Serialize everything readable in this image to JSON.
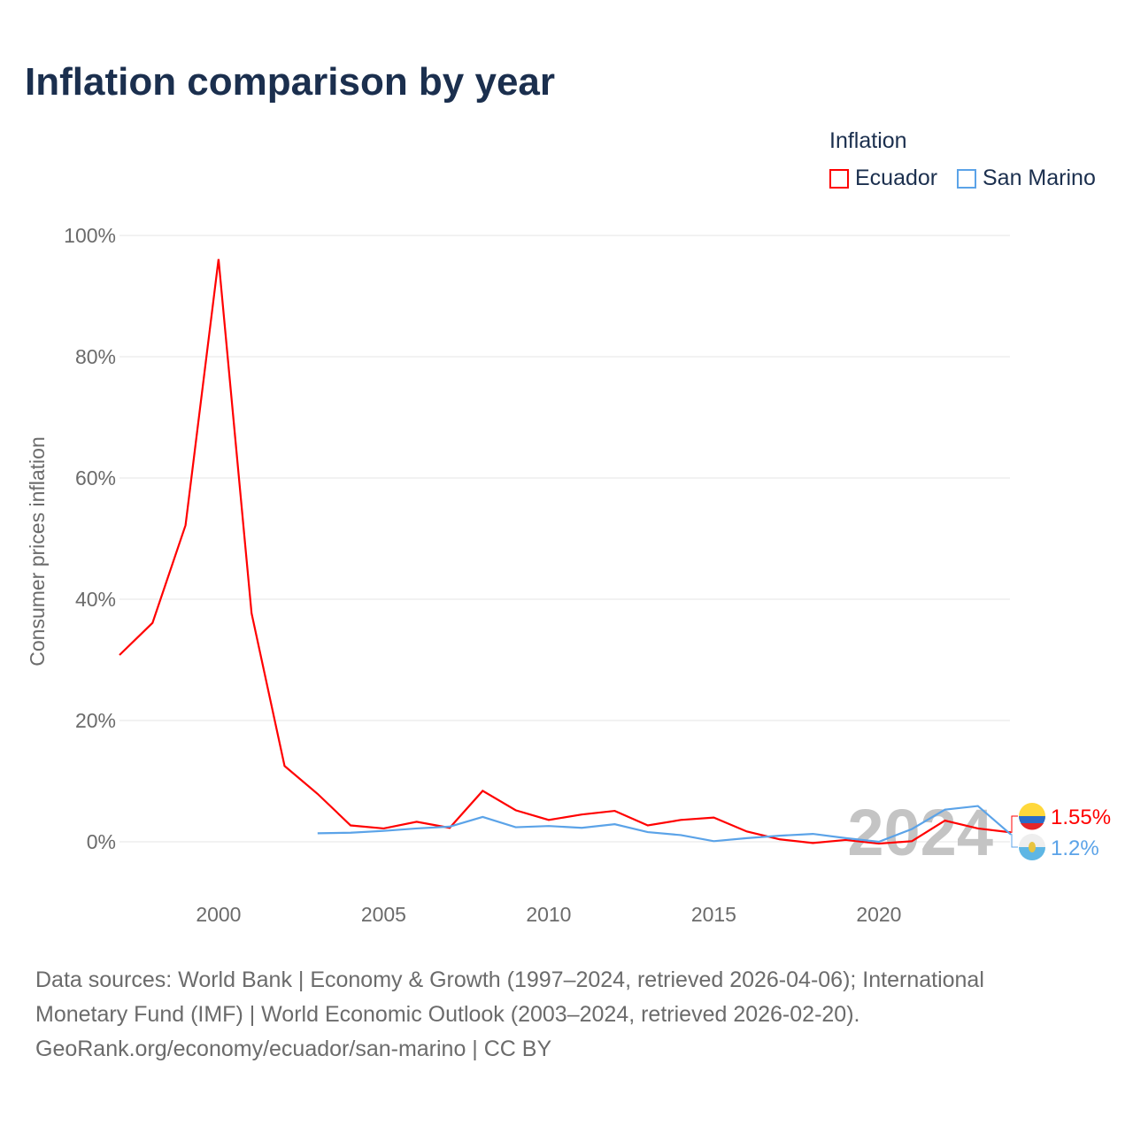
{
  "chart_data": {
    "type": "line",
    "title": "Inflation comparison by year",
    "xlabel": "",
    "ylabel": "Consumer prices inflation",
    "ylim": [
      -10,
      100
    ],
    "xlim": [
      1997,
      2024
    ],
    "yticks": [
      "0%",
      "20%",
      "40%",
      "60%",
      "80%",
      "100%"
    ],
    "ytick_values": [
      0,
      20,
      40,
      60,
      80,
      100
    ],
    "xticks": [
      "2000",
      "2005",
      "2010",
      "2015",
      "2020"
    ],
    "xtick_values": [
      2000,
      2005,
      2010,
      2015,
      2020
    ],
    "grid": true,
    "legend_title": "Inflation",
    "legend_position": "top-right",
    "watermark_year": "2024",
    "series": [
      {
        "name": "Ecuador",
        "color": "#ff0000",
        "end_label": "1.55%",
        "x": [
          1997,
          1998,
          1999,
          2000,
          2001,
          2002,
          2003,
          2004,
          2005,
          2006,
          2007,
          2008,
          2009,
          2010,
          2011,
          2012,
          2013,
          2014,
          2015,
          2016,
          2017,
          2018,
          2019,
          2020,
          2021,
          2022,
          2023,
          2024
        ],
        "values": [
          30.8,
          36.1,
          52.2,
          96.1,
          37.7,
          12.5,
          7.9,
          2.7,
          2.2,
          3.3,
          2.3,
          8.4,
          5.2,
          3.6,
          4.5,
          5.1,
          2.7,
          3.6,
          4.0,
          1.7,
          0.4,
          -0.2,
          0.3,
          -0.3,
          0.1,
          3.5,
          2.2,
          1.55
        ]
      },
      {
        "name": "San Marino",
        "color": "#5ba3e8",
        "end_label": "1.2%",
        "x": [
          2003,
          2004,
          2005,
          2006,
          2007,
          2008,
          2009,
          2010,
          2011,
          2012,
          2013,
          2014,
          2015,
          2016,
          2017,
          2018,
          2019,
          2020,
          2021,
          2022,
          2023,
          2024
        ],
        "values": [
          1.4,
          1.5,
          1.8,
          2.2,
          2.5,
          4.1,
          2.4,
          2.6,
          2.3,
          2.9,
          1.6,
          1.1,
          0.1,
          0.6,
          1.0,
          1.3,
          0.6,
          0.0,
          2.1,
          5.3,
          5.9,
          1.2
        ]
      }
    ]
  },
  "footer": {
    "line1": "Data sources: World Bank | Economy & Growth (1997–2024, retrieved 2026-04-06); International",
    "line2": "Monetary Fund (IMF) | World Economic Outlook (2003–2024, retrieved 2026-02-20).",
    "line3": "GeoRank.org/economy/ecuador/san-marino | CC BY"
  }
}
